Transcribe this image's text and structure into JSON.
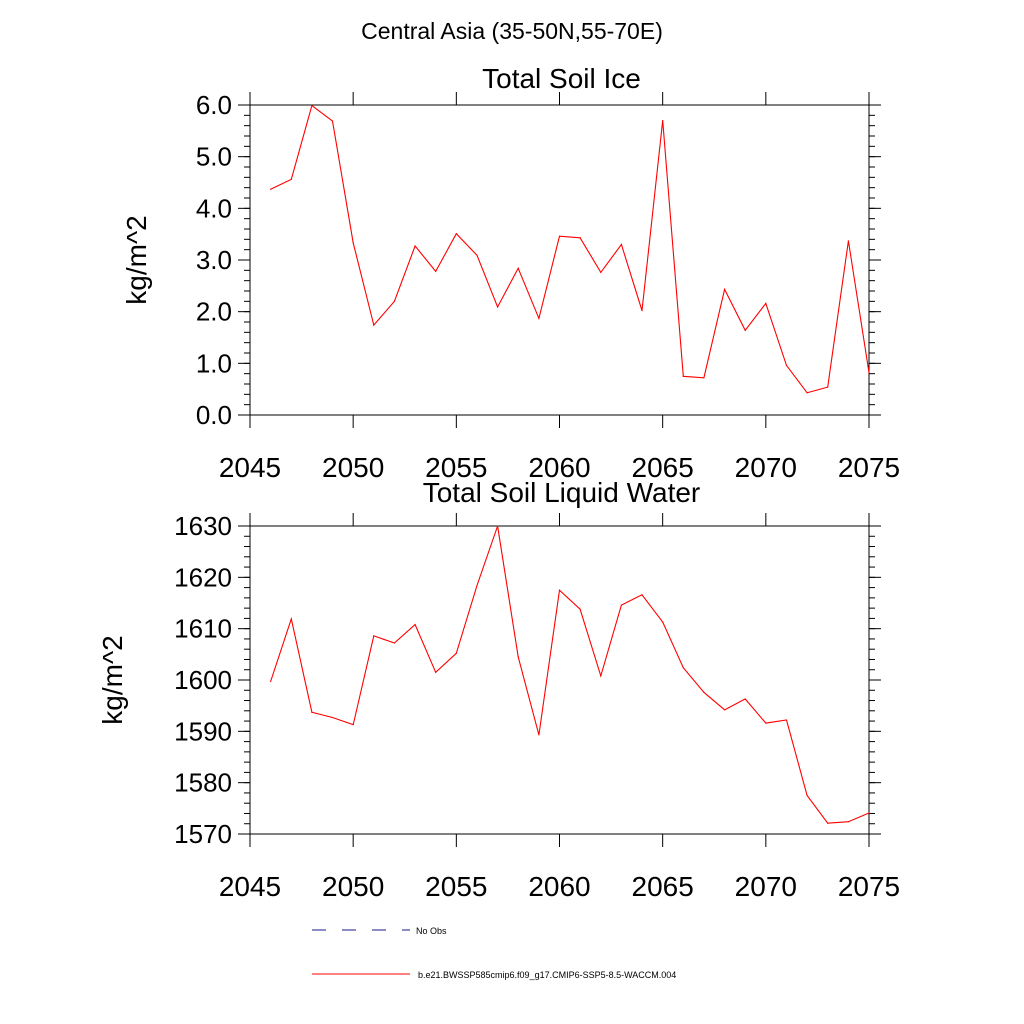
{
  "figure_title": "Central Asia (35-50N,55-70E)",
  "legend": [
    {
      "label": "No Obs",
      "color": "#1a1a8a",
      "dash": "dashed"
    },
    {
      "label": "b.e21.BWSSP585cmip6.f09_g17.CMIP6-SSP5-8.5-WACCM.004",
      "color": "#ff0000",
      "dash": "solid"
    }
  ],
  "chart_data": [
    {
      "type": "line",
      "title": "Total Soil Ice",
      "ylabel": "kg/m^2",
      "xlabel": "",
      "xlim": [
        2045,
        2075
      ],
      "ylim": [
        0,
        6
      ],
      "xticks": [
        2045,
        2050,
        2055,
        2060,
        2065,
        2070,
        2075
      ],
      "yticks": [
        0,
        1,
        2,
        3,
        4,
        5,
        6
      ],
      "ytick_labels": [
        "0.0",
        "1.0",
        "2.0",
        "3.0",
        "4.0",
        "5.0",
        "6.0"
      ],
      "series": [
        {
          "color": "#ff0000",
          "x": [
            2046,
            2047,
            2048,
            2049,
            2050,
            2051,
            2052,
            2053,
            2054,
            2055,
            2056,
            2057,
            2058,
            2059,
            2060,
            2061,
            2062,
            2063,
            2064,
            2065,
            2066,
            2067,
            2068,
            2069,
            2070,
            2071,
            2072,
            2073,
            2074,
            2075
          ],
          "values": [
            4.37,
            4.56,
            5.99,
            5.69,
            3.33,
            1.74,
            2.2,
            3.27,
            2.78,
            3.51,
            3.09,
            2.09,
            2.84,
            1.87,
            3.46,
            3.43,
            2.76,
            3.3,
            2.02,
            5.7,
            0.75,
            0.72,
            2.43,
            1.64,
            2.16,
            0.96,
            0.43,
            0.54,
            3.37,
            0.82
          ]
        }
      ]
    },
    {
      "type": "line",
      "title": "Total Soil Liquid Water",
      "ylabel": "kg/m^2",
      "xlabel": "",
      "xlim": [
        2045,
        2075
      ],
      "ylim": [
        1570,
        1630
      ],
      "xticks": [
        2045,
        2050,
        2055,
        2060,
        2065,
        2070,
        2075
      ],
      "yticks": [
        1570,
        1580,
        1590,
        1600,
        1610,
        1620,
        1630
      ],
      "ytick_labels": [
        "1570",
        "1580",
        "1590",
        "1600",
        "1610",
        "1620",
        "1630"
      ],
      "series": [
        {
          "color": "#ff0000",
          "x": [
            2046,
            2047,
            2048,
            2049,
            2050,
            2051,
            2052,
            2053,
            2054,
            2055,
            2056,
            2057,
            2058,
            2059,
            2060,
            2061,
            2062,
            2063,
            2064,
            2065,
            2066,
            2067,
            2068,
            2069,
            2070,
            2071,
            2072,
            2073,
            2074,
            2075
          ],
          "values": [
            1599.7,
            1611.9,
            1593.7,
            1592.7,
            1591.3,
            1608.6,
            1607.2,
            1610.8,
            1601.5,
            1605.2,
            1618.4,
            1630.0,
            1604.5,
            1589.3,
            1617.5,
            1613.8,
            1600.8,
            1614.6,
            1616.6,
            1611.3,
            1602.4,
            1597.6,
            1594.2,
            1596.3,
            1591.6,
            1592.2,
            1577.5,
            1572.1,
            1572.4,
            1574.1
          ]
        }
      ]
    }
  ]
}
